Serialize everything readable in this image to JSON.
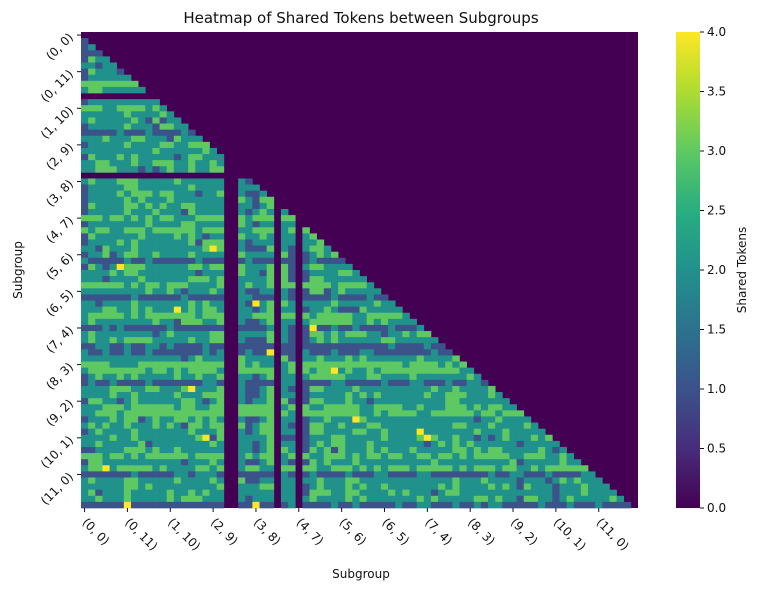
{
  "chart_data": {
    "type": "heatmap",
    "title": "Heatmap of Shared Tokens between Subgroups",
    "xlabel": "Subgroup",
    "ylabel": "Subgroup",
    "colorbar_label": "Shared Tokens",
    "colormap": "viridis",
    "vmin": 0.0,
    "vmax": 4.0,
    "mask": "upper-triangle (diagonal and above = 0)",
    "x_tick_labels": [
      "(0, 0)",
      "(0, 11)",
      "(1, 10)",
      "(2, 9)",
      "(3, 8)",
      "(4, 7)",
      "(5, 6)",
      "(6, 5)",
      "(7, 4)",
      "(8, 3)",
      "(9, 2)",
      "(10, 1)",
      "(11, 0)"
    ],
    "y_tick_labels": [
      "(0, 0)",
      "(0, 11)",
      "(1, 10)",
      "(2, 9)",
      "(3, 8)",
      "(4, 7)",
      "(5, 6)",
      "(6, 5)",
      "(7, 4)",
      "(8, 3)",
      "(9, 2)",
      "(10, 1)",
      "(11, 0)"
    ],
    "colorbar_ticks": [
      "0.0",
      "0.5",
      "1.0",
      "1.5",
      "2.0",
      "2.5",
      "3.0",
      "3.5",
      "4.0"
    ],
    "matrix_size": 78,
    "zero_rows": [
      10,
      23
    ],
    "zero_cols": [
      20,
      21,
      27,
      30
    ],
    "typical_value": 2,
    "frequent_values": [
      1,
      2,
      3
    ],
    "peak_value": 4
  }
}
